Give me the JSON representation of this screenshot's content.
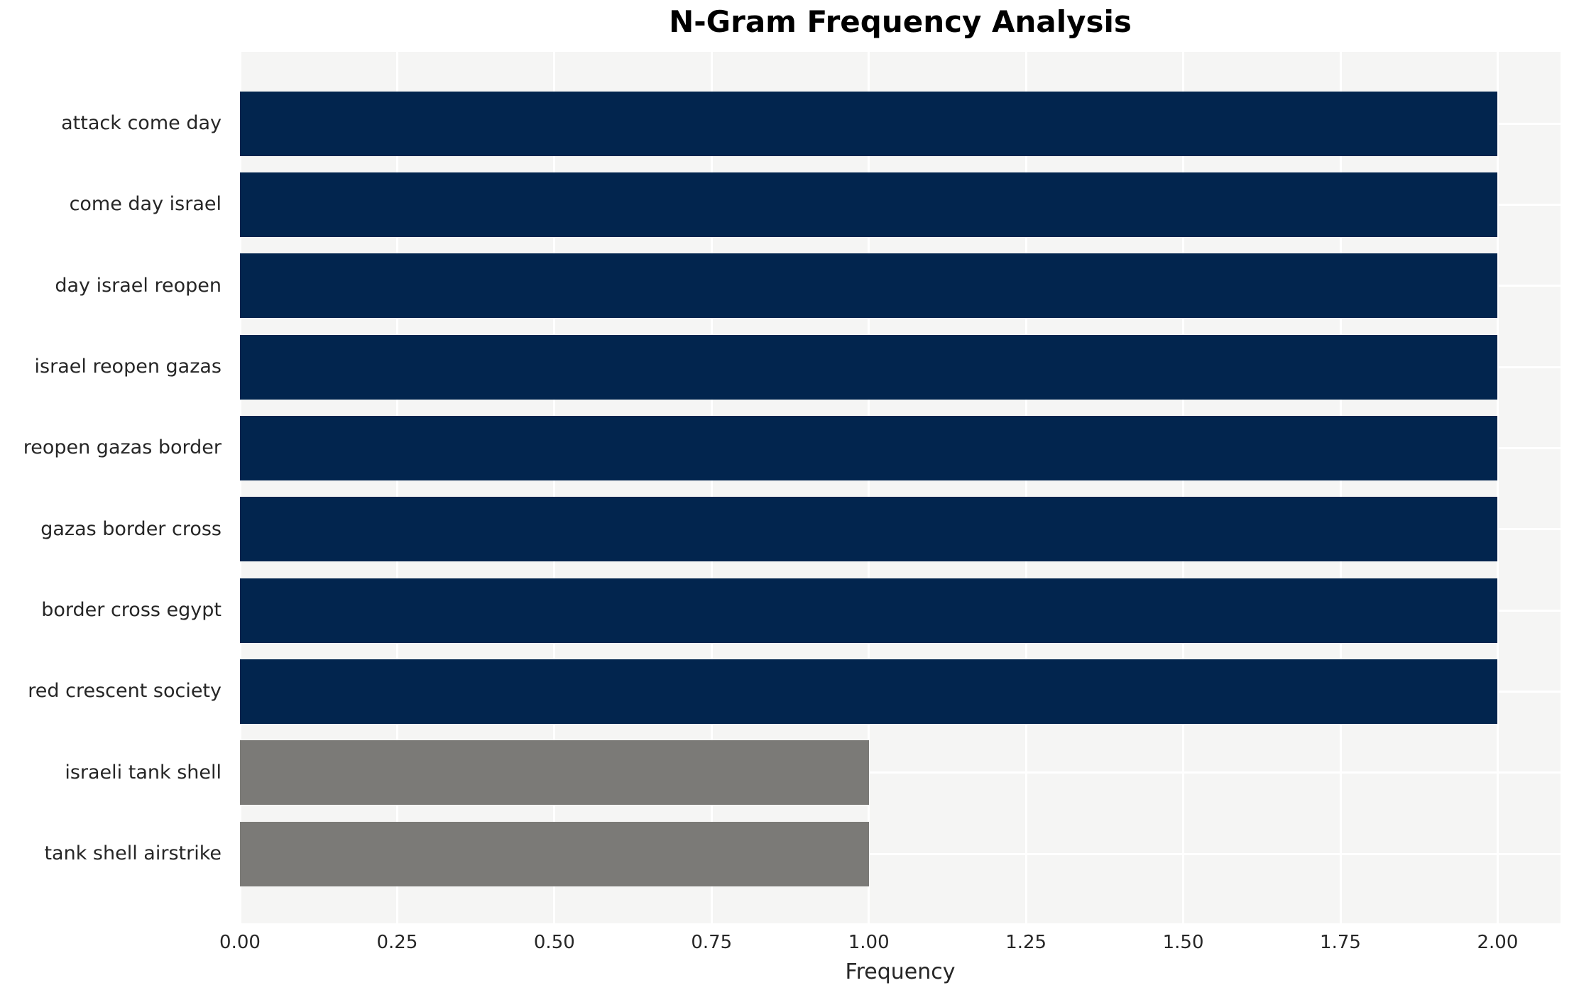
{
  "chart_data": {
    "type": "bar",
    "orientation": "horizontal",
    "title": "N-Gram Frequency Analysis",
    "xlabel": "Frequency",
    "ylabel": "",
    "categories": [
      "attack come day",
      "come day israel",
      "day israel reopen",
      "israel reopen gazas",
      "reopen gazas border",
      "gazas border cross",
      "border cross egypt",
      "red crescent society",
      "israeli tank shell",
      "tank shell airstrike"
    ],
    "values": [
      2,
      2,
      2,
      2,
      2,
      2,
      2,
      2,
      1,
      1
    ],
    "bar_colors": [
      "#02254e",
      "#02254e",
      "#02254e",
      "#02254e",
      "#02254e",
      "#02254e",
      "#02254e",
      "#02254e",
      "#7b7a77",
      "#7b7a77"
    ],
    "xlim": [
      0,
      2.1
    ],
    "xticks": [
      {
        "value": 0.0,
        "label": "0.00"
      },
      {
        "value": 0.25,
        "label": "0.25"
      },
      {
        "value": 0.5,
        "label": "0.50"
      },
      {
        "value": 0.75,
        "label": "0.75"
      },
      {
        "value": 1.0,
        "label": "1.00"
      },
      {
        "value": 1.25,
        "label": "1.25"
      },
      {
        "value": 1.5,
        "label": "1.50"
      },
      {
        "value": 1.75,
        "label": "1.75"
      },
      {
        "value": 2.0,
        "label": "2.00"
      }
    ],
    "grid": true,
    "legend": "none",
    "colors": {
      "navy_bar": "#02254e",
      "gray_bar": "#7b7a77",
      "plot_background": "#f5f5f4",
      "gridline": "#ffffff",
      "text": "#262626",
      "title_text": "#000000"
    }
  }
}
